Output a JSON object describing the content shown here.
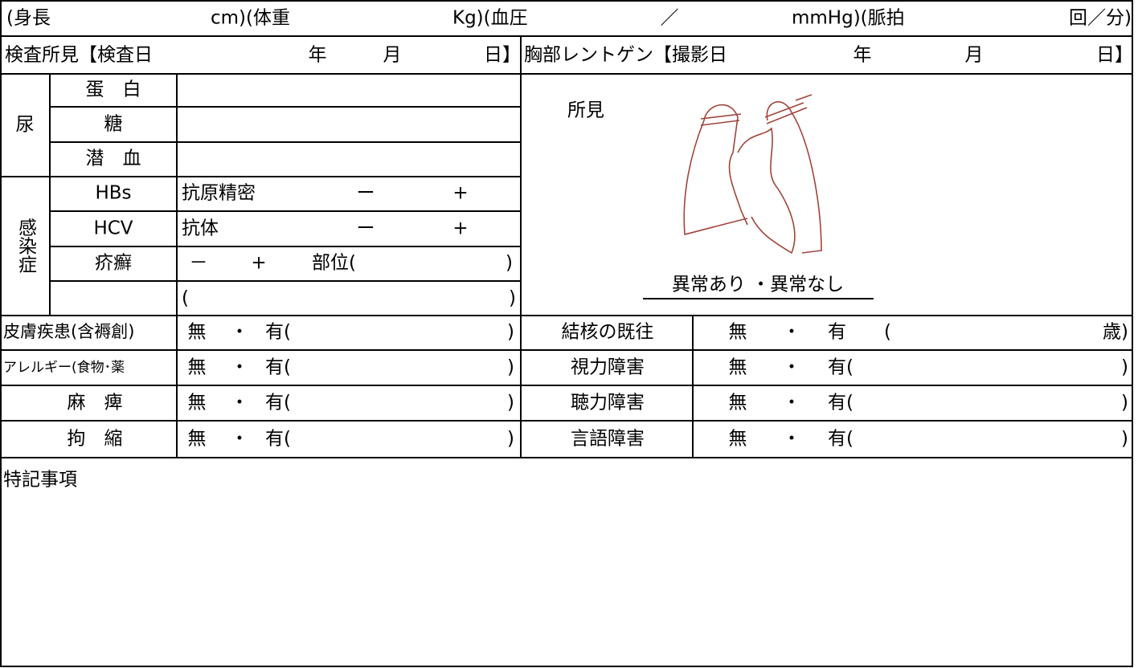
{
  "vitals": [
    "(身長",
    "cm)(体重",
    "Kg)(血圧",
    "／",
    "mmHg)(脈拍",
    "回／分)"
  ],
  "exam_header": {
    "label": "検査所見【検査日",
    "year": "年",
    "month": "月",
    "day": "日】"
  },
  "xray_header": {
    "label": "胸部レントゲン【撮影日",
    "year": "年",
    "month": "月",
    "day": "日】"
  },
  "urine": {
    "label": "尿",
    "items": [
      "蛋　白",
      "糖",
      "潜　血"
    ]
  },
  "infection": {
    "label": "感染症",
    "rows": [
      {
        "name": "HBs",
        "test": "抗原精密",
        "neg": "ー",
        "pos": "+"
      },
      {
        "name": "HCV",
        "test": "抗体",
        "neg": "ー",
        "pos": "+"
      },
      {
        "name": "疥癬",
        "neg": "－",
        "pos": "+",
        "site": "部位(",
        "close": ")"
      }
    ],
    "other": {
      "open": "(",
      "close": ")"
    }
  },
  "xray": {
    "findings_label": "所見",
    "result": "異常あり ・異常なし"
  },
  "conditions_left": [
    {
      "label": "皮膚疾患(含褥創)",
      "none": "無",
      "dot": "・",
      "yes": "有(",
      "close": ")"
    },
    {
      "label": "アレルギー(食物･薬",
      "none": "無",
      "dot": "・",
      "yes": "有(",
      "close": ")"
    },
    {
      "label": "麻　痺",
      "none": "無",
      "dot": "・",
      "yes": "有(",
      "close": ")"
    },
    {
      "label": "拘　縮",
      "none": "無",
      "dot": "・",
      "yes": "有(",
      "close": ")"
    }
  ],
  "conditions_right": [
    {
      "label": "結核の既往",
      "none": "無",
      "dot": "・",
      "yes": "有",
      "open": "(",
      "close": "歳)"
    },
    {
      "label": "視力障害",
      "none": "無",
      "dot": "・",
      "yes": "有(",
      "close": ")"
    },
    {
      "label": "聴力障害",
      "none": "無",
      "dot": "・",
      "yes": "有(",
      "close": ")"
    },
    {
      "label": "言語障害",
      "none": "無",
      "dot": "・",
      "yes": "有(",
      "close": ")"
    }
  ],
  "notes": {
    "label": "特記事項"
  }
}
